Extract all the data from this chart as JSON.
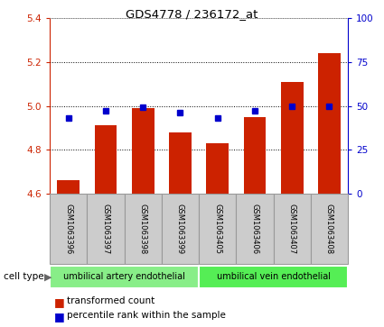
{
  "title": "GDS4778 / 236172_at",
  "samples": [
    "GSM1063396",
    "GSM1063397",
    "GSM1063398",
    "GSM1063399",
    "GSM1063405",
    "GSM1063406",
    "GSM1063407",
    "GSM1063408"
  ],
  "transformed_count": [
    4.66,
    4.91,
    4.99,
    4.88,
    4.83,
    4.95,
    5.11,
    5.24
  ],
  "percentile_rank": [
    43,
    47,
    49,
    46,
    43,
    47,
    50,
    50
  ],
  "ylim_left": [
    4.6,
    5.4
  ],
  "ylim_right": [
    0,
    100
  ],
  "yticks_left": [
    4.6,
    4.8,
    5.0,
    5.2,
    5.4
  ],
  "yticks_right": [
    0,
    25,
    50,
    75,
    100
  ],
  "bar_color": "#cc2200",
  "dot_color": "#0000cc",
  "cell_groups": [
    {
      "label": "umbilical artery endothelial",
      "start": 0,
      "end": 3,
      "color": "#88ee88"
    },
    {
      "label": "umbilical vein endothelial",
      "start": 4,
      "end": 7,
      "color": "#55ee55"
    }
  ],
  "cell_type_label": "cell type",
  "legend_bar_label": "transformed count",
  "legend_dot_label": "percentile rank within the sample",
  "axis_color_left": "#cc2200",
  "axis_color_right": "#0000cc",
  "label_box_color": "#cccccc",
  "label_box_edge": "#999999"
}
